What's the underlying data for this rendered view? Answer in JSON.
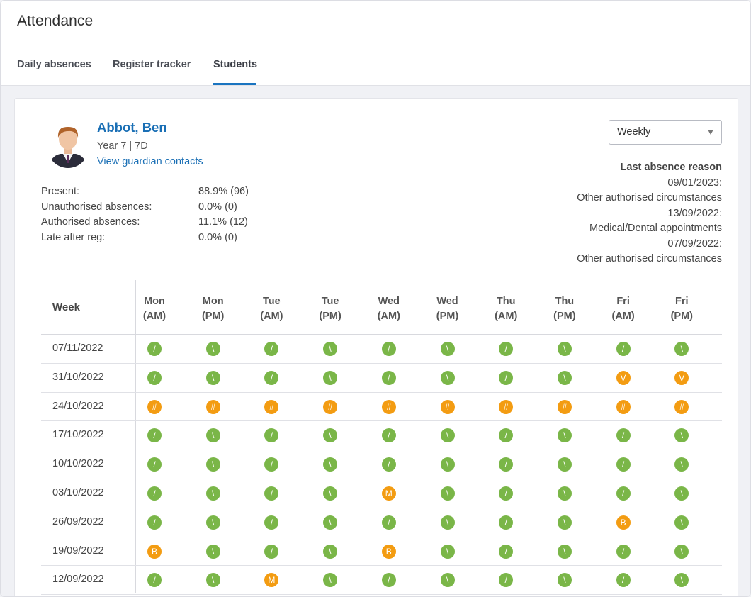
{
  "header": {
    "title": "Attendance"
  },
  "tabs": [
    {
      "label": "Daily absences"
    },
    {
      "label": "Register tracker"
    },
    {
      "label": "Students"
    }
  ],
  "student": {
    "name": "Abbot, Ben",
    "year": "Year 7 | 7D",
    "guardian_link": "View guardian contacts"
  },
  "stats": [
    {
      "label": "Present:",
      "value": "88.9% (96)"
    },
    {
      "label": "Unauthorised absences:",
      "value": "0.0% (0)"
    },
    {
      "label": "Authorised absences:",
      "value": "11.1% (12)"
    },
    {
      "label": "Late after reg:",
      "value": "0.0% (0)"
    }
  ],
  "period_select": {
    "value": "Weekly"
  },
  "last_absence": {
    "title": "Last absence reason",
    "lines": [
      "09/01/2023:",
      "Other authorised circumstances",
      "13/09/2022:",
      "Medical/Dental appointments",
      "07/09/2022:",
      "Other authorised circumstances"
    ]
  },
  "table": {
    "week_header": "Week",
    "columns": [
      [
        "Mon",
        "(AM)"
      ],
      [
        "Mon",
        "(PM)"
      ],
      [
        "Tue",
        "(AM)"
      ],
      [
        "Tue",
        "(PM)"
      ],
      [
        "Wed",
        "(AM)"
      ],
      [
        "Wed",
        "(PM)"
      ],
      [
        "Thu",
        "(AM)"
      ],
      [
        "Thu",
        "(PM)"
      ],
      [
        "Fri",
        "(AM)"
      ],
      [
        "Fri",
        "(PM)"
      ]
    ],
    "rows": [
      {
        "week": "07/11/2022",
        "marks": [
          "/",
          "\\",
          "/",
          "\\",
          "/",
          "\\",
          "/",
          "\\",
          "/",
          "\\"
        ]
      },
      {
        "week": "31/10/2022",
        "marks": [
          "/",
          "\\",
          "/",
          "\\",
          "/",
          "\\",
          "/",
          "\\",
          "V",
          "V"
        ]
      },
      {
        "week": "24/10/2022",
        "marks": [
          "#",
          "#",
          "#",
          "#",
          "#",
          "#",
          "#",
          "#",
          "#",
          "#"
        ]
      },
      {
        "week": "17/10/2022",
        "marks": [
          "/",
          "\\",
          "/",
          "\\",
          "/",
          "\\",
          "/",
          "\\",
          "/",
          "\\"
        ]
      },
      {
        "week": "10/10/2022",
        "marks": [
          "/",
          "\\",
          "/",
          "\\",
          "/",
          "\\",
          "/",
          "\\",
          "/",
          "\\"
        ]
      },
      {
        "week": "03/10/2022",
        "marks": [
          "/",
          "\\",
          "/",
          "\\",
          "M",
          "\\",
          "/",
          "\\",
          "/",
          "\\"
        ]
      },
      {
        "week": "26/09/2022",
        "marks": [
          "/",
          "\\",
          "/",
          "\\",
          "/",
          "\\",
          "/",
          "\\",
          "B",
          "\\"
        ]
      },
      {
        "week": "19/09/2022",
        "marks": [
          "B",
          "\\",
          "/",
          "\\",
          "B",
          "\\",
          "/",
          "\\",
          "/",
          "\\"
        ]
      },
      {
        "week": "12/09/2022",
        "marks": [
          "/",
          "\\",
          "M",
          "\\",
          "/",
          "\\",
          "/",
          "\\",
          "/",
          "\\"
        ]
      }
    ]
  },
  "colors": {
    "present": "#7ab648",
    "absence": "#f39c12",
    "link": "#1a6fb5",
    "tab_underline": "#1a74c0"
  }
}
